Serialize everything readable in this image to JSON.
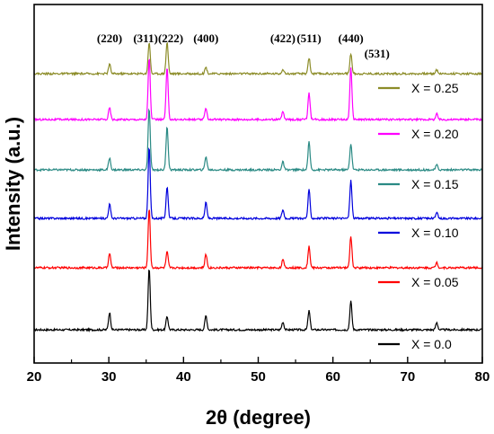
{
  "chart_data": {
    "type": "line",
    "xlabel": "2θ (degree)",
    "ylabel": "Intensity (a.u.)",
    "xlim": [
      20,
      80
    ],
    "x_ticks": [
      "20",
      "30",
      "40",
      "50",
      "60",
      "70",
      "80"
    ],
    "grid": false,
    "legend_position": "right",
    "peak_labels": [
      {
        "label": "(220)",
        "x": 30.1
      },
      {
        "label": "(311)",
        "x": 35.4
      },
      {
        "label": "(222)",
        "x": 37.8
      },
      {
        "label": "(400)",
        "x": 43.0
      },
      {
        "label": "(422)",
        "x": 53.3
      },
      {
        "label": "(511)",
        "x": 56.8
      },
      {
        "label": "(440)",
        "x": 62.4
      },
      {
        "label": "(531)",
        "x": 65.9
      }
    ],
    "series": [
      {
        "name": "X = 0.0",
        "color": "#000000",
        "peaks": [
          [
            30.1,
            0.22
          ],
          [
            35.4,
            0.78
          ],
          [
            37.8,
            0.17
          ],
          [
            43.0,
            0.18
          ],
          [
            53.3,
            0.1
          ],
          [
            56.8,
            0.24
          ],
          [
            62.4,
            0.36
          ],
          [
            73.9,
            0.09
          ]
        ]
      },
      {
        "name": "X = 0.05",
        "color": "#ff0000",
        "peaks": [
          [
            30.1,
            0.18
          ],
          [
            35.4,
            0.75
          ],
          [
            37.8,
            0.2
          ],
          [
            43.0,
            0.17
          ],
          [
            53.3,
            0.1
          ],
          [
            56.8,
            0.27
          ],
          [
            62.4,
            0.4
          ],
          [
            73.9,
            0.07
          ]
        ]
      },
      {
        "name": "X = 0.10",
        "color": "#0000dd",
        "peaks": [
          [
            30.1,
            0.18
          ],
          [
            35.4,
            0.9
          ],
          [
            37.8,
            0.4
          ],
          [
            43.0,
            0.2
          ],
          [
            53.3,
            0.11
          ],
          [
            56.8,
            0.36
          ],
          [
            62.4,
            0.48
          ],
          [
            73.9,
            0.07
          ]
        ]
      },
      {
        "name": "X = 0.15",
        "color": "#2a8a84",
        "peaks": [
          [
            30.1,
            0.15
          ],
          [
            35.4,
            0.78
          ],
          [
            37.8,
            0.55
          ],
          [
            43.0,
            0.17
          ],
          [
            53.3,
            0.1
          ],
          [
            56.8,
            0.35
          ],
          [
            62.4,
            0.33
          ],
          [
            73.9,
            0.06
          ]
        ]
      },
      {
        "name": "X = 0.20",
        "color": "#ff00ff",
        "peaks": [
          [
            30.1,
            0.15
          ],
          [
            35.4,
            0.78
          ],
          [
            37.8,
            0.65
          ],
          [
            43.0,
            0.15
          ],
          [
            53.3,
            0.1
          ],
          [
            56.8,
            0.33
          ],
          [
            62.4,
            0.65
          ],
          [
            73.9,
            0.07
          ]
        ]
      },
      {
        "name": "X = 0.25",
        "color": "#8c8c28",
        "peaks": [
          [
            30.1,
            0.12
          ],
          [
            35.4,
            0.4
          ],
          [
            37.8,
            0.4
          ],
          [
            43.0,
            0.08
          ],
          [
            53.3,
            0.06
          ],
          [
            56.8,
            0.2
          ],
          [
            62.4,
            0.25
          ],
          [
            73.9,
            0.05
          ]
        ]
      }
    ]
  }
}
